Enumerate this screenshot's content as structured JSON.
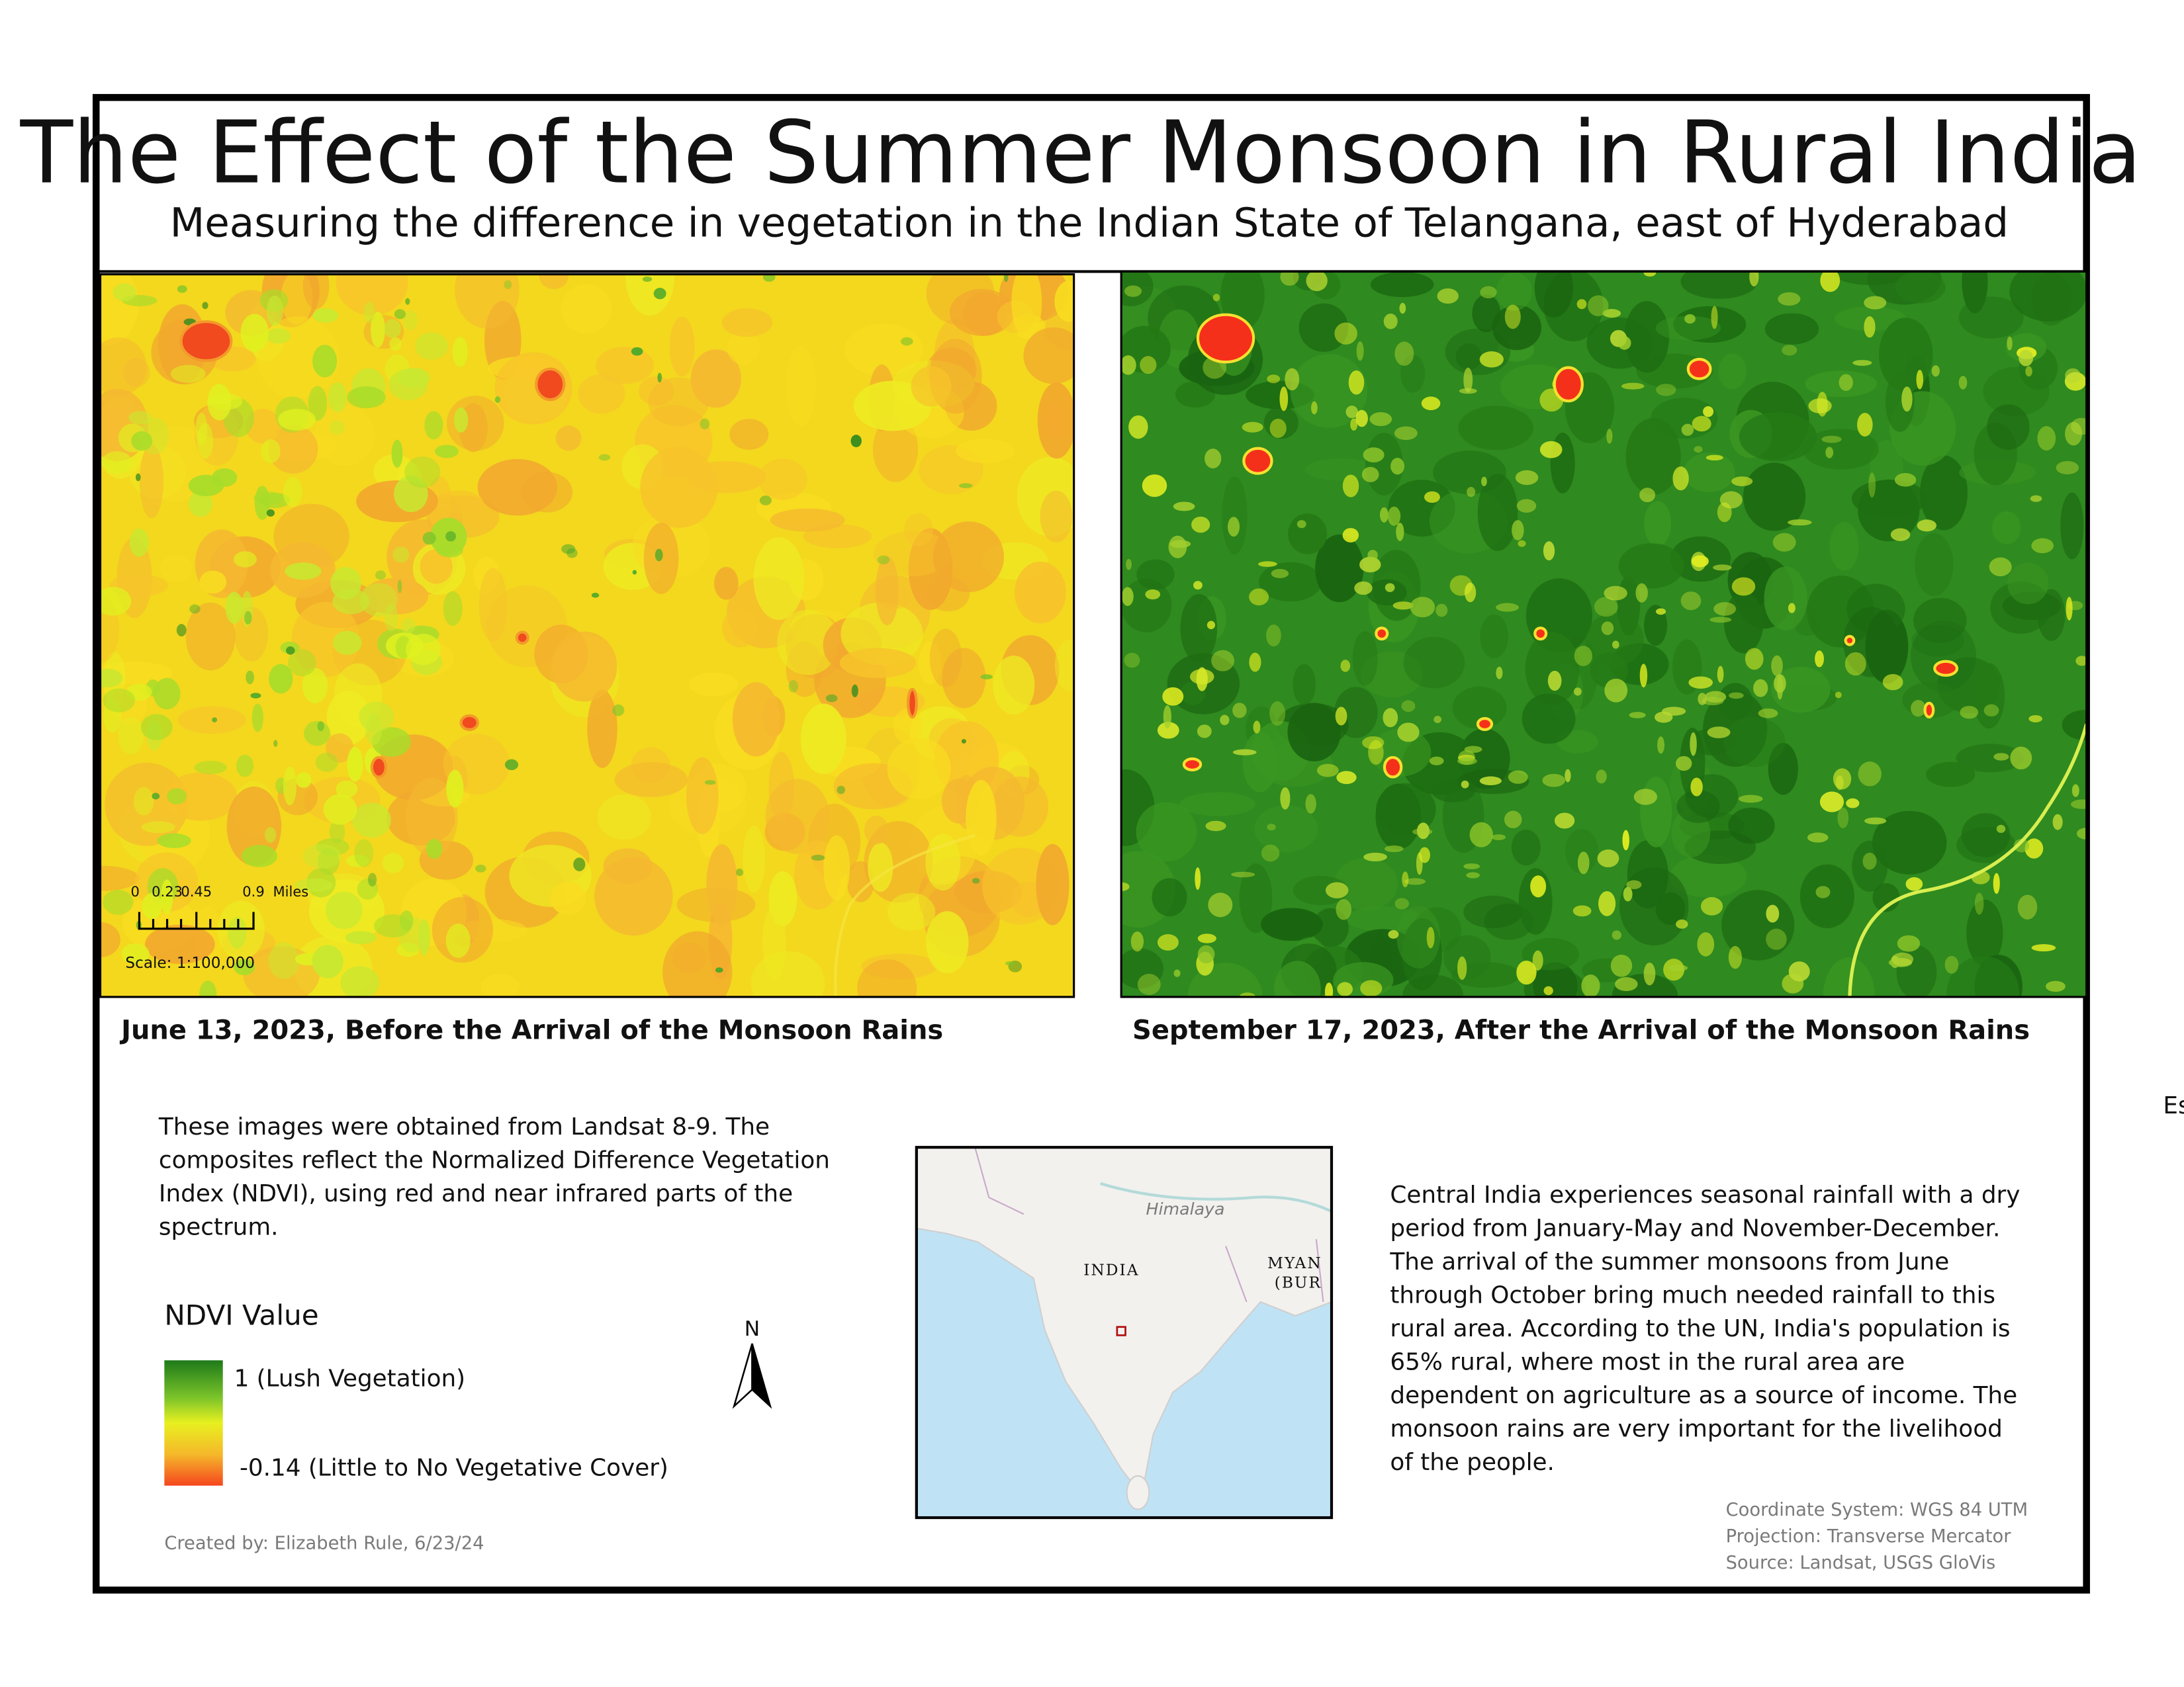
{
  "header": {
    "title": "The Effect of the Summer Monsoon in Rural India",
    "subtitle": "Measuring the difference in vegetation in the Indian State of Telangana, east of Hyderabad"
  },
  "maps": [
    {
      "caption": "June 13, 2023, Before the Arrival of the Monsoon Rains"
    },
    {
      "caption": "September 17, 2023, After the Arrival of the Monsoon Rains"
    }
  ],
  "scale_bar": {
    "labels": [
      "0",
      "0.23",
      "0.45",
      "0.9"
    ],
    "unit": "Miles",
    "scale": "Scale: 1:100,000"
  },
  "description": {
    "lines": [
      "These images were obtained from Landsat 8-9. The",
      "composites reflect the Normalized Difference Vegetation",
      "Index (NDVI), using red and near infrared parts of the",
      "spectrum."
    ]
  },
  "legend": {
    "title": "NDVI Value",
    "high": "1 (Lush Vegetation)",
    "low": "-0.14 (Little to No Vegetative Cover)"
  },
  "north_arrow": {
    "label": "N"
  },
  "inset_map": {
    "labels": [
      "Himalaya",
      "INDIA",
      "MYAN",
      "(BUR"
    ]
  },
  "side_text": {
    "lines": [
      "Central India experiences seasonal rainfall with a dry",
      "period from January-May and November-December.",
      "The arrival of the summer monsoons from June",
      "through October bring much needed rainfall to this",
      "rural area. According to the UN, India's population is",
      "65% rural, where most in the rural area are",
      "dependent on agriculture as a source of income. The",
      "monsoon rains are very important for the livelihood",
      "of the people."
    ]
  },
  "credit": "Created by: Elizabeth Rule, 6/23/24",
  "metadata": {
    "lines": [
      "Coordinate System: WGS 84 UTM",
      "Projection: Transverse Mercator",
      "Source: Landsat, USGS GloVis"
    ]
  },
  "edge_text": "Es"
}
